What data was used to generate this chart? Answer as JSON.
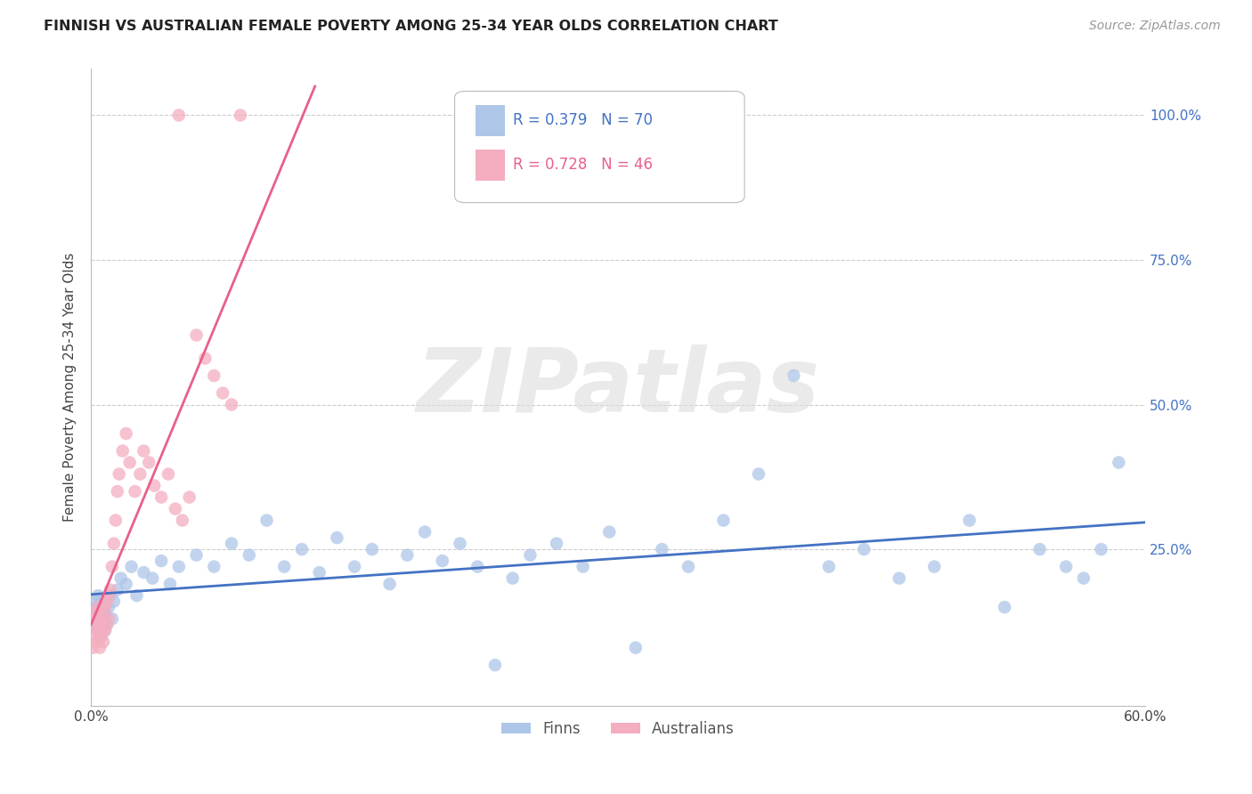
{
  "title": "FINNISH VS AUSTRALIAN FEMALE POVERTY AMONG 25-34 YEAR OLDS CORRELATION CHART",
  "source": "Source: ZipAtlas.com",
  "ylabel": "Female Poverty Among 25-34 Year Olds",
  "xlim": [
    0.0,
    0.6
  ],
  "ylim": [
    -0.02,
    1.08
  ],
  "x_ticks": [
    0.0,
    0.6
  ],
  "x_tick_labels": [
    "0.0%",
    "60.0%"
  ],
  "y_ticks": [
    0.0,
    0.25,
    0.5,
    0.75,
    1.0
  ],
  "y_tick_labels": [
    "",
    "25.0%",
    "50.0%",
    "75.0%",
    "100.0%"
  ],
  "grid_color": "#cccccc",
  "background_color": "#ffffff",
  "watermark": "ZIPatlas",
  "finns_color": "#aec6e8",
  "finns_line_color": "#4472c4",
  "australians_color": "#f4aec0",
  "australians_line_color": "#e8608a",
  "finns_R": 0.379,
  "finns_N": 70,
  "australians_R": 0.728,
  "australians_N": 46,
  "finns_x": [
    0.001,
    0.002,
    0.002,
    0.003,
    0.003,
    0.004,
    0.004,
    0.005,
    0.005,
    0.006,
    0.006,
    0.007,
    0.007,
    0.008,
    0.008,
    0.009,
    0.01,
    0.011,
    0.012,
    0.013,
    0.015,
    0.017,
    0.02,
    0.023,
    0.026,
    0.03,
    0.035,
    0.04,
    0.045,
    0.05,
    0.06,
    0.07,
    0.08,
    0.09,
    0.1,
    0.11,
    0.12,
    0.13,
    0.14,
    0.15,
    0.16,
    0.17,
    0.18,
    0.19,
    0.2,
    0.21,
    0.22,
    0.23,
    0.24,
    0.25,
    0.265,
    0.28,
    0.295,
    0.31,
    0.325,
    0.34,
    0.36,
    0.38,
    0.4,
    0.42,
    0.44,
    0.46,
    0.48,
    0.5,
    0.52,
    0.54,
    0.555,
    0.565,
    0.575,
    0.585
  ],
  "finns_y": [
    0.14,
    0.12,
    0.16,
    0.13,
    0.15,
    0.11,
    0.17,
    0.1,
    0.14,
    0.12,
    0.16,
    0.13,
    0.15,
    0.11,
    0.14,
    0.12,
    0.15,
    0.17,
    0.13,
    0.16,
    0.18,
    0.2,
    0.19,
    0.22,
    0.17,
    0.21,
    0.2,
    0.23,
    0.19,
    0.22,
    0.24,
    0.22,
    0.26,
    0.24,
    0.3,
    0.22,
    0.25,
    0.21,
    0.27,
    0.22,
    0.25,
    0.19,
    0.24,
    0.28,
    0.23,
    0.26,
    0.22,
    0.05,
    0.2,
    0.24,
    0.26,
    0.22,
    0.28,
    0.08,
    0.25,
    0.22,
    0.3,
    0.38,
    0.55,
    0.22,
    0.25,
    0.2,
    0.22,
    0.3,
    0.15,
    0.25,
    0.22,
    0.2,
    0.25,
    0.4
  ],
  "australians_x": [
    0.001,
    0.001,
    0.002,
    0.002,
    0.003,
    0.003,
    0.004,
    0.004,
    0.005,
    0.005,
    0.006,
    0.006,
    0.007,
    0.007,
    0.008,
    0.008,
    0.009,
    0.009,
    0.01,
    0.01,
    0.011,
    0.012,
    0.013,
    0.014,
    0.015,
    0.016,
    0.018,
    0.02,
    0.022,
    0.025,
    0.028,
    0.03,
    0.033,
    0.036,
    0.04,
    0.044,
    0.048,
    0.052,
    0.056,
    0.06,
    0.065,
    0.07,
    0.075,
    0.08,
    0.05,
    0.085
  ],
  "australians_y": [
    0.12,
    0.08,
    0.1,
    0.14,
    0.09,
    0.13,
    0.11,
    0.15,
    0.08,
    0.12,
    0.1,
    0.14,
    0.09,
    0.13,
    0.11,
    0.15,
    0.12,
    0.16,
    0.13,
    0.17,
    0.18,
    0.22,
    0.26,
    0.3,
    0.35,
    0.38,
    0.42,
    0.45,
    0.4,
    0.35,
    0.38,
    0.42,
    0.4,
    0.36,
    0.34,
    0.38,
    0.32,
    0.3,
    0.34,
    0.62,
    0.58,
    0.55,
    0.52,
    0.5,
    1.0,
    1.0
  ]
}
